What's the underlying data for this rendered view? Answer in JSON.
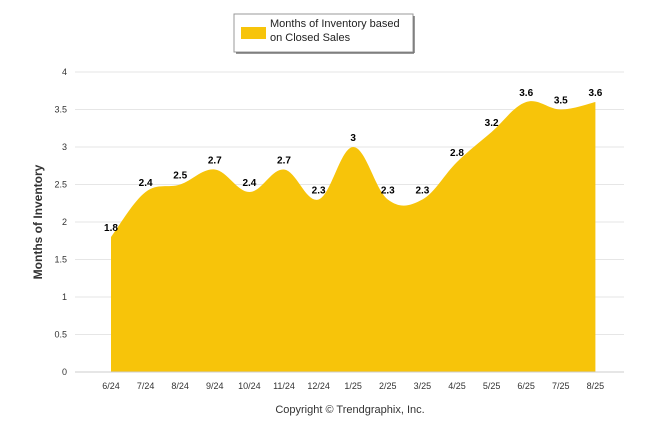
{
  "chart_data": {
    "type": "area",
    "categories": [
      "6/24",
      "7/24",
      "8/24",
      "9/24",
      "10/24",
      "11/24",
      "12/24",
      "1/25",
      "2/25",
      "3/25",
      "4/25",
      "5/25",
      "6/25",
      "7/25",
      "8/25"
    ],
    "series": [
      {
        "name": "Months of Inventory based on Closed Sales",
        "values": [
          1.8,
          2.4,
          2.5,
          2.7,
          2.4,
          2.7,
          2.3,
          3,
          2.3,
          2.3,
          2.8,
          3.2,
          3.6,
          3.5,
          3.6
        ],
        "data_labels": [
          "1.8",
          "2.4",
          "2.5",
          "2.7",
          "2.4",
          "2.7",
          "2.3",
          "3",
          "2.3",
          "2.3",
          "2.8",
          "3.2",
          "3.6",
          "3.5",
          "3.6"
        ]
      }
    ],
    "ylabel": "Months of Inventory",
    "ylim": [
      0,
      4
    ],
    "yticks": [
      "0",
      "0.5",
      "1",
      "1.5",
      "2",
      "2.5",
      "3",
      "3.5",
      "4"
    ],
    "grid": true,
    "legend_position": "top-center",
    "legend_lines": [
      "Months of Inventory based",
      "on Closed Sales"
    ],
    "fill_color": "#F7C40A",
    "footer": "Copyright © Trendgraphix, Inc."
  }
}
